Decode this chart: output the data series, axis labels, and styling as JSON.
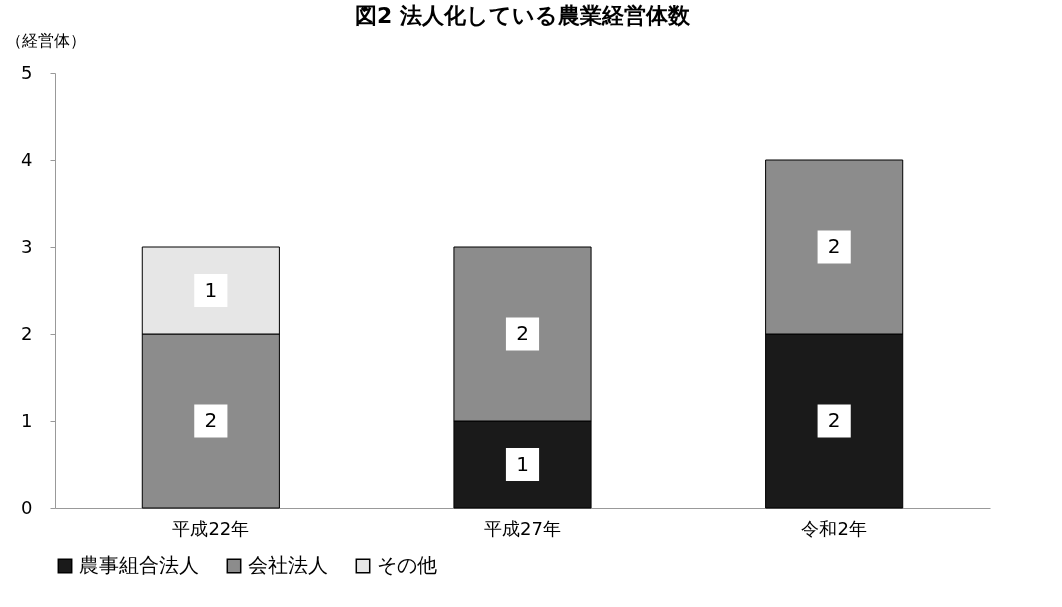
{
  "chart_data": {
    "type": "bar",
    "title": "図2 法人化している農業経営体数",
    "ylabel": "（経営体）",
    "categories": [
      "平成22年",
      "平成27年",
      "令和2年"
    ],
    "stacked": true,
    "series": [
      {
        "name": "農事組合法人",
        "color": "#1a1a1a",
        "values": [
          null,
          1,
          2
        ]
      },
      {
        "name": "会社法人",
        "color": "#8c8c8c",
        "values": [
          2,
          2,
          2
        ]
      },
      {
        "name": "その他",
        "color": "#e6e6e6",
        "values": [
          1,
          null,
          null
        ]
      }
    ],
    "ylim": [
      0,
      5
    ],
    "yticks": [
      0,
      1,
      2,
      3,
      4,
      5
    ],
    "grid": false,
    "legend": "bottom",
    "data_labels": true
  }
}
